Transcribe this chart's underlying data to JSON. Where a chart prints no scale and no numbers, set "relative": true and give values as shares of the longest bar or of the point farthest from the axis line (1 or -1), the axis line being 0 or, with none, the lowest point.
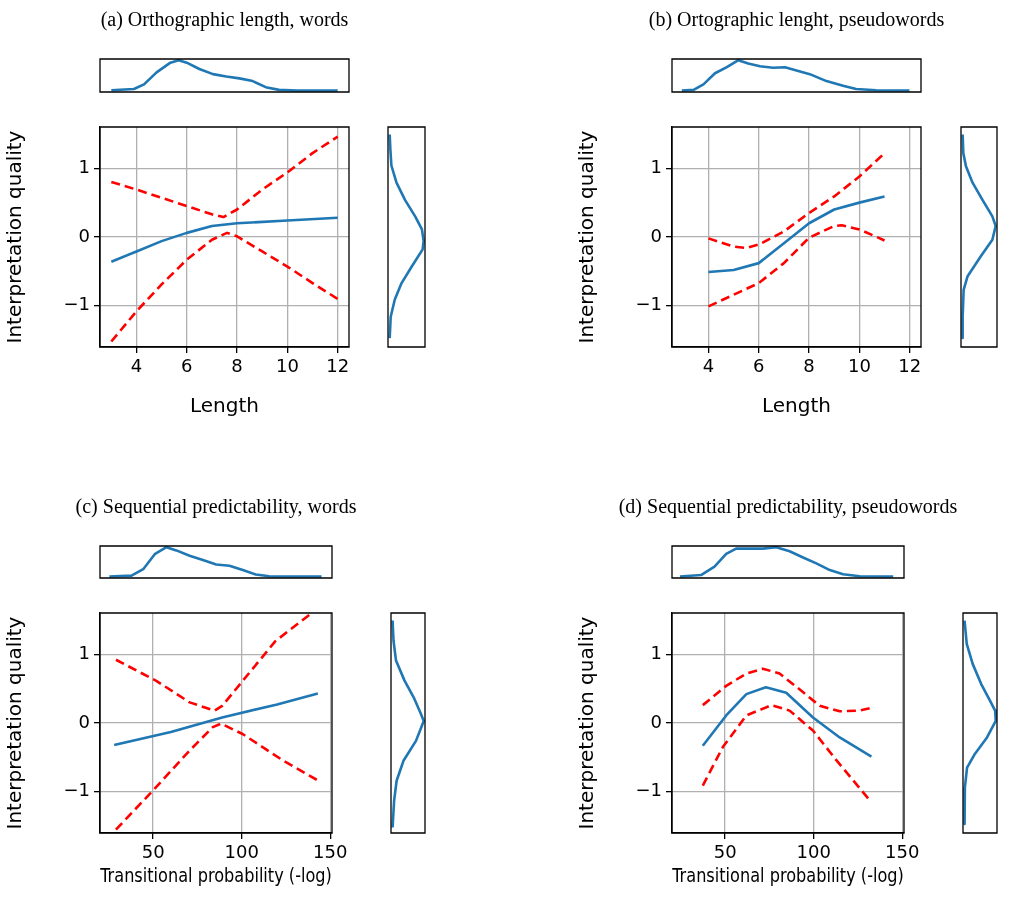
{
  "chart_data": [
    {
      "type": "line",
      "title": "(a) Orthographic length, words",
      "relative": true,
      "tick_labels": false,
      "xlim": [
        2.55,
        12.45
      ],
      "series": [
        {
          "color": "#1f77b4",
          "x": [
            3.0,
            3.9,
            4.3,
            4.8,
            5.35,
            5.68,
            6.0,
            6.5,
            7.04,
            7.57,
            8.09,
            8.62,
            9.14,
            9.67,
            10.36,
            12.0
          ],
          "values": [
            0.01,
            0.05,
            0.2,
            0.6,
            0.92,
            1.0,
            0.92,
            0.71,
            0.54,
            0.46,
            0.4,
            0.31,
            0.11,
            0.02,
            0,
            0
          ]
        }
      ]
    },
    {
      "type": "line",
      "xlabel": "Length",
      "ylabel": "Interpretation quality",
      "xlim": [
        2.55,
        12.45
      ],
      "ylim": [
        -1.6,
        1.6
      ],
      "xticks": [
        4,
        6,
        8,
        10,
        12
      ],
      "yticks": [
        -1,
        0,
        1
      ],
      "grid": true,
      "series": [
        {
          "color": "#1f77b4",
          "line_style": "solid",
          "x": [
            3,
            4,
            5,
            6,
            7,
            8,
            10,
            12
          ],
          "values": [
            -0.36,
            -0.21,
            -0.06,
            0.06,
            0.16,
            0.2,
            0.24,
            0.28
          ]
        },
        {
          "color": "#ff0000",
          "line_style": "dashed",
          "x": [
            3,
            4,
            5,
            6,
            7,
            7.46,
            8,
            9,
            10,
            11,
            12
          ],
          "values": [
            0.8,
            0.69,
            0.57,
            0.45,
            0.33,
            0.29,
            0.4,
            0.69,
            0.94,
            1.22,
            1.46
          ]
        },
        {
          "color": "#ff0000",
          "line_style": "dashed",
          "x": [
            3,
            4,
            5,
            6,
            7,
            7.6,
            8,
            9,
            10,
            11,
            12
          ],
          "values": [
            -1.52,
            -1.08,
            -0.69,
            -0.33,
            -0.04,
            0.06,
            0.01,
            -0.21,
            -0.43,
            -0.67,
            -0.9
          ]
        }
      ]
    },
    {
      "type": "line",
      "orientation": "horizontal",
      "relative": true,
      "tick_labels": false,
      "ylim": [
        -1.6,
        1.6
      ],
      "series": [
        {
          "color": "#1f77b4",
          "x": [
            1.49,
            1.27,
            1.04,
            0.79,
            0.54,
            0.3,
            0.11,
            -0.06,
            -0.18,
            -0.43,
            -0.67,
            -0.91,
            -1.16,
            -1.47
          ],
          "values": [
            0,
            0.02,
            0.05,
            0.2,
            0.45,
            0.75,
            0.95,
            1.0,
            0.97,
            0.65,
            0.35,
            0.15,
            0.03,
            0
          ]
        }
      ]
    },
    {
      "type": "line",
      "title": "(b) Ortographic lenght, pseudowords",
      "relative": true,
      "tick_labels": false,
      "xlim": [
        2.55,
        12.45
      ],
      "series": [
        {
          "color": "#1f77b4",
          "x": [
            2.94,
            3.41,
            3.8,
            4.26,
            4.73,
            5.19,
            5.58,
            6.05,
            6.57,
            7.04,
            7.5,
            8.03,
            8.69,
            9.35,
            9.87,
            10.67,
            11.99
          ],
          "values": [
            0,
            0.02,
            0.2,
            0.57,
            0.77,
            1,
            0.89,
            0.8,
            0.75,
            0.77,
            0.66,
            0.54,
            0.31,
            0.16,
            0.05,
            0.01,
            0
          ]
        }
      ]
    },
    {
      "type": "line",
      "xlabel": "Length",
      "ylabel": "Interpretation quality",
      "xlim": [
        2.55,
        12.45
      ],
      "ylim": [
        -1.6,
        1.6
      ],
      "xticks": [
        4,
        6,
        8,
        10,
        12
      ],
      "yticks": [
        -1,
        0,
        1
      ],
      "grid": true,
      "series": [
        {
          "color": "#1f77b4",
          "line_style": "solid",
          "x": [
            4,
            5,
            6,
            7,
            8,
            9,
            10,
            11
          ],
          "values": [
            -0.51,
            -0.48,
            -0.38,
            -0.09,
            0.2,
            0.4,
            0.5,
            0.59
          ]
        },
        {
          "color": "#ff0000",
          "line_style": "dashed",
          "x": [
            4,
            5,
            5.5,
            6,
            7,
            8,
            9,
            10,
            11
          ],
          "values": [
            -0.02,
            -0.14,
            -0.16,
            -0.11,
            0.08,
            0.35,
            0.59,
            0.88,
            1.22
          ]
        },
        {
          "color": "#ff0000",
          "line_style": "dashed",
          "x": [
            4,
            5,
            6,
            7,
            8,
            9,
            9.3,
            10,
            11
          ],
          "values": [
            -1.01,
            -0.84,
            -0.67,
            -0.38,
            -0.01,
            0.16,
            0.17,
            0.11,
            -0.05
          ]
        }
      ]
    },
    {
      "type": "line",
      "orientation": "horizontal",
      "relative": true,
      "tick_labels": false,
      "ylim": [
        -1.6,
        1.6
      ],
      "series": [
        {
          "color": "#1f77b4",
          "x": [
            1.49,
            1.22,
            1.03,
            0.79,
            0.54,
            0.3,
            0.16,
            -0.04,
            -0.28,
            -0.57,
            -0.77,
            -1.16,
            -1.47
          ],
          "values": [
            0,
            0.02,
            0.1,
            0.3,
            0.6,
            0.9,
            1.0,
            0.9,
            0.55,
            0.15,
            0.03,
            0,
            0
          ]
        }
      ]
    },
    {
      "type": "line",
      "title": "(c) Sequential predictability, words",
      "relative": true,
      "tick_labels": false,
      "xlim": [
        20,
        151
      ],
      "series": [
        {
          "color": "#1f77b4",
          "x": [
            25.3,
            37.8,
            44.4,
            50.9,
            57.5,
            63.1,
            70.6,
            78.1,
            85.6,
            93.1,
            100.6,
            108,
            115.5,
            126.8,
            145.1
          ],
          "values": [
            0,
            0.03,
            0.25,
            0.76,
            1,
            0.89,
            0.71,
            0.56,
            0.41,
            0.37,
            0.22,
            0.07,
            0.01,
            0,
            0
          ]
        }
      ]
    },
    {
      "type": "line",
      "xlabel": "Transitional probability (-log)",
      "ylabel": "Interpretation quality",
      "xlim": [
        20,
        151
      ],
      "ylim": [
        -1.6,
        1.6
      ],
      "xticks": [
        50,
        100,
        150
      ],
      "yticks": [
        -1,
        0,
        1
      ],
      "grid": true,
      "series": [
        {
          "color": "#1f77b4",
          "line_style": "solid",
          "x": [
            28,
            60,
            89,
            120,
            143
          ],
          "values": [
            -0.32,
            -0.13,
            0.08,
            0.27,
            0.43
          ]
        },
        {
          "color": "#ff0000",
          "line_style": "dashed",
          "x": [
            29,
            52,
            70.6,
            84.6,
            89,
            100.5,
            119,
            139.5
          ],
          "values": [
            0.92,
            0.61,
            0.3,
            0.18,
            0.25,
            0.61,
            1.19,
            1.6
          ]
        },
        {
          "color": "#ff0000",
          "line_style": "dashed",
          "x": [
            29,
            50,
            70.6,
            83.7,
            88.4,
            100.5,
            123,
            142.7
          ],
          "values": [
            -1.55,
            -0.98,
            -0.4,
            -0.06,
            -0.01,
            -0.16,
            -0.54,
            -0.83
          ]
        }
      ]
    },
    {
      "type": "line",
      "orientation": "horizontal",
      "relative": true,
      "tick_labels": false,
      "ylim": [
        -1.6,
        1.6
      ],
      "series": [
        {
          "color": "#1f77b4",
          "x": [
            1.49,
            1.2,
            0.91,
            0.62,
            0.37,
            0.13,
            0.03,
            -0.26,
            -0.55,
            -0.84,
            -1.13,
            -1.52
          ],
          "values": [
            0,
            0.03,
            0.11,
            0.38,
            0.68,
            0.91,
            1.0,
            0.75,
            0.35,
            0.13,
            0.05,
            0
          ]
        }
      ]
    },
    {
      "type": "line",
      "title": "(d) Sequential predictability, pseudowords",
      "relative": true,
      "tick_labels": false,
      "xlim": [
        20,
        151
      ],
      "series": [
        {
          "color": "#1f77b4",
          "x": [
            24.5,
            36.4,
            44,
            50.6,
            56.2,
            63.8,
            71.3,
            78.9,
            86.4,
            94,
            101.5,
            109.1,
            116.6,
            126,
            144.9
          ],
          "values": [
            0,
            0.05,
            0.34,
            0.77,
            0.95,
            0.95,
            0.95,
            1.0,
            0.86,
            0.65,
            0.45,
            0.22,
            0.08,
            0.01,
            0
          ]
        }
      ]
    },
    {
      "type": "line",
      "xlabel": "Transitional probability (-log)",
      "ylabel": "Interpretation quality",
      "xlim": [
        20,
        151
      ],
      "ylim": [
        -1.6,
        1.6
      ],
      "xticks": [
        50,
        100,
        150
      ],
      "yticks": [
        -1,
        0,
        1
      ],
      "grid": true,
      "series": [
        {
          "color": "#1f77b4",
          "line_style": "solid",
          "x": [
            37.4,
            50.6,
            62,
            73,
            84.5,
            99.6,
            114.7,
            132.6
          ],
          "values": [
            -0.33,
            0.11,
            0.42,
            0.52,
            0.44,
            0.08,
            -0.21,
            -0.49
          ]
        },
        {
          "color": "#ff0000",
          "line_style": "dashed",
          "x": [
            37.4,
            50.6,
            62,
            71.3,
            80.7,
            92,
            103.4,
            114.7,
            126,
            132.6
          ],
          "values": [
            0.26,
            0.54,
            0.72,
            0.79,
            0.72,
            0.49,
            0.25,
            0.17,
            0.18,
            0.22
          ]
        },
        {
          "color": "#ff0000",
          "line_style": "dashed",
          "x": [
            37.4,
            48.7,
            62,
            76.2,
            86.4,
            99.6,
            112.8,
            131.5
          ],
          "values": [
            -0.91,
            -0.35,
            0.11,
            0.26,
            0.18,
            -0.11,
            -0.54,
            -1.12
          ]
        }
      ]
    },
    {
      "type": "line",
      "orientation": "horizontal",
      "relative": true,
      "tick_labels": false,
      "ylim": [
        -1.6,
        1.6
      ],
      "series": [
        {
          "color": "#1f77b4",
          "x": [
            1.49,
            1.15,
            0.86,
            0.57,
            0.33,
            0.18,
            0.03,
            -0.21,
            -0.45,
            -0.65,
            -0.94,
            -1.47
          ],
          "values": [
            0,
            0.07,
            0.26,
            0.53,
            0.81,
            0.98,
            1,
            0.72,
            0.33,
            0.08,
            0.01,
            0
          ]
        }
      ]
    }
  ]
}
